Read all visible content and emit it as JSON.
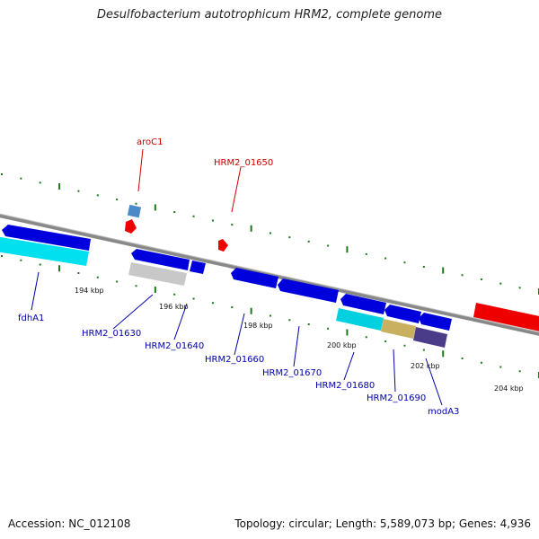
{
  "title": "Desulfobacterium autotrophicum HRM2, complete genome",
  "footer": {
    "accession": "Accession: NC_012108",
    "topology": "Topology: circular; Length: 5,589,073 bp; Genes: 4,936"
  },
  "scale_labels": [
    "194 kbp",
    "196 kbp",
    "198 kbp",
    "200 kbp",
    "202 kbp",
    "204 kbp"
  ],
  "genes_upper": [
    "aroC1",
    "HRM2_01650"
  ],
  "genes_lower": [
    "fdhA1",
    "HRM2_01630",
    "HRM2_01640",
    "HRM2_01660",
    "HRM2_01670",
    "HRM2_01680",
    "HRM2_01690",
    "modA3"
  ],
  "colors": {
    "forward_arrow": "#0000dd",
    "reverse_gene": "#ee0000",
    "cyan": "#00e0ee",
    "grey": "#c8c8c8",
    "khaki": "#c8b060",
    "purple": "#4a3c88",
    "tick": "#1a7a1a",
    "backbone": "#888888"
  }
}
